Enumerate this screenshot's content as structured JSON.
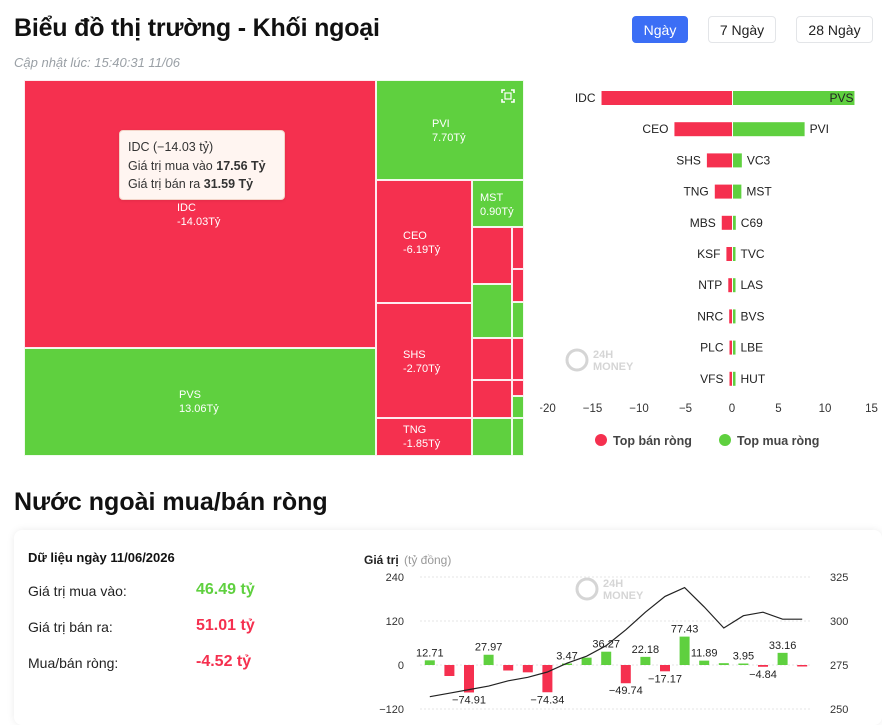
{
  "header": {
    "title": "Biểu đồ thị trường - Khối ngoại",
    "updated": "Cập nhật lúc: 15:40:31 11/06"
  },
  "range_tabs": [
    {
      "label": "Ngày",
      "active": true
    },
    {
      "label": "7 Ngày",
      "active": false
    },
    {
      "label": "28 Ngày",
      "active": false
    }
  ],
  "colors": {
    "sell": "#f5304f",
    "buy": "#5fd03f",
    "accent": "#3b6ef5",
    "line": "#222222"
  },
  "treemap": {
    "tiles": [
      {
        "code": "IDC",
        "value": "-14.03Tỷ",
        "side": "sell"
      },
      {
        "code": "PVS",
        "value": "13.06Tỷ",
        "side": "buy"
      },
      {
        "code": "PVI",
        "value": "7.70Tỷ",
        "side": "buy"
      },
      {
        "code": "CEO",
        "value": "-6.19Tỷ",
        "side": "sell"
      },
      {
        "code": "MST",
        "value": "0.90Tỷ",
        "side": "buy"
      },
      {
        "code": "SHS",
        "value": "-2.70Tỷ",
        "side": "sell"
      },
      {
        "code": "TNG",
        "value": "-1.85Tỷ",
        "side": "sell"
      }
    ],
    "tooltip": {
      "title": "IDC (−14.03 tỷ)",
      "buy_label": "Giá trị mua vào",
      "buy_value": "17.56 Tỷ",
      "sell_label": "Giá trị bán ra",
      "sell_value": "31.59 Tỷ"
    },
    "expand_icon": "expand-icon"
  },
  "watermark": {
    "line1": "24H",
    "line2": "MONEY"
  },
  "chart_data": [
    {
      "type": "bar",
      "orientation": "horizontal",
      "title": "",
      "xlim": [
        -20,
        15
      ],
      "x_ticks": [
        -20,
        -15,
        -10,
        -5,
        0,
        5,
        10,
        15
      ],
      "rows": [
        {
          "sell": "IDC",
          "sell_value": -14.03,
          "buy": "PVS",
          "buy_value": 13.06
        },
        {
          "sell": "CEO",
          "sell_value": -6.19,
          "buy": "PVI",
          "buy_value": 7.7
        },
        {
          "sell": "SHS",
          "sell_value": -2.7,
          "buy": "VC3",
          "buy_value": 0.95
        },
        {
          "sell": "TNG",
          "sell_value": -1.85,
          "buy": "MST",
          "buy_value": 0.9
        },
        {
          "sell": "MBS",
          "sell_value": -1.1,
          "buy": "C69",
          "buy_value": 0.3
        },
        {
          "sell": "KSF",
          "sell_value": -0.6,
          "buy": "TVC",
          "buy_value": 0.25
        },
        {
          "sell": "NTP",
          "sell_value": -0.4,
          "buy": "LAS",
          "buy_value": 0.2
        },
        {
          "sell": "NRC",
          "sell_value": -0.3,
          "buy": "BVS",
          "buy_value": 0.15
        },
        {
          "sell": "PLC",
          "sell_value": -0.2,
          "buy": "LBE",
          "buy_value": 0.1
        },
        {
          "sell": "VFS",
          "sell_value": -0.15,
          "buy": "HUT",
          "buy_value": 0.08
        }
      ],
      "legend": [
        {
          "label": "Top bán ròng",
          "color": "#f5304f"
        },
        {
          "label": "Top mua ròng",
          "color": "#5fd03f"
        }
      ],
      "legend_position": "bottom"
    },
    {
      "type": "bar",
      "title": "Giá trị",
      "unit": "(tỷ đồng)",
      "y_ticks": [
        240,
        120,
        0,
        -120
      ],
      "ylim": [
        -120,
        240
      ],
      "y2_ticks": [
        325,
        300,
        275,
        250
      ],
      "y2lim": [
        250,
        325
      ],
      "values": [
        12.71,
        -30,
        -74.91,
        27.97,
        -15,
        -20,
        -74.34,
        3.47,
        20,
        36.27,
        -49.74,
        22.18,
        -17.17,
        77.43,
        11.89,
        5,
        3.95,
        -4.84,
        33.16,
        -2
      ],
      "data_labels": [
        "12.71",
        "",
        "-74.91",
        "27.97",
        "",
        "",
        "-74.34",
        "3.47",
        "",
        "36.27",
        "-49.74",
        "22.18",
        "-17.17",
        "77.43",
        "11.89",
        "",
        "3.95",
        "-4.84",
        "33.16",
        ""
      ],
      "line_values": [
        257,
        259,
        261,
        263,
        266,
        268,
        271,
        276,
        280,
        286,
        295,
        305,
        314,
        319,
        308,
        296,
        303,
        305,
        301,
        301
      ]
    }
  ],
  "net_summary": {
    "heading": "Nước ngoài mua/bán ròng",
    "date_label": "Dữ liệu ngày 11/06/2026",
    "rows": [
      {
        "label": "Giá trị mua vào:",
        "value": "46.49 tỷ",
        "side": "buy"
      },
      {
        "label": "Giá trị bán ra:",
        "value": "51.01 tỷ",
        "side": "sell"
      },
      {
        "label": "Mua/bán ròng:",
        "value": "-4.52 tỷ",
        "side": "sell"
      }
    ]
  }
}
